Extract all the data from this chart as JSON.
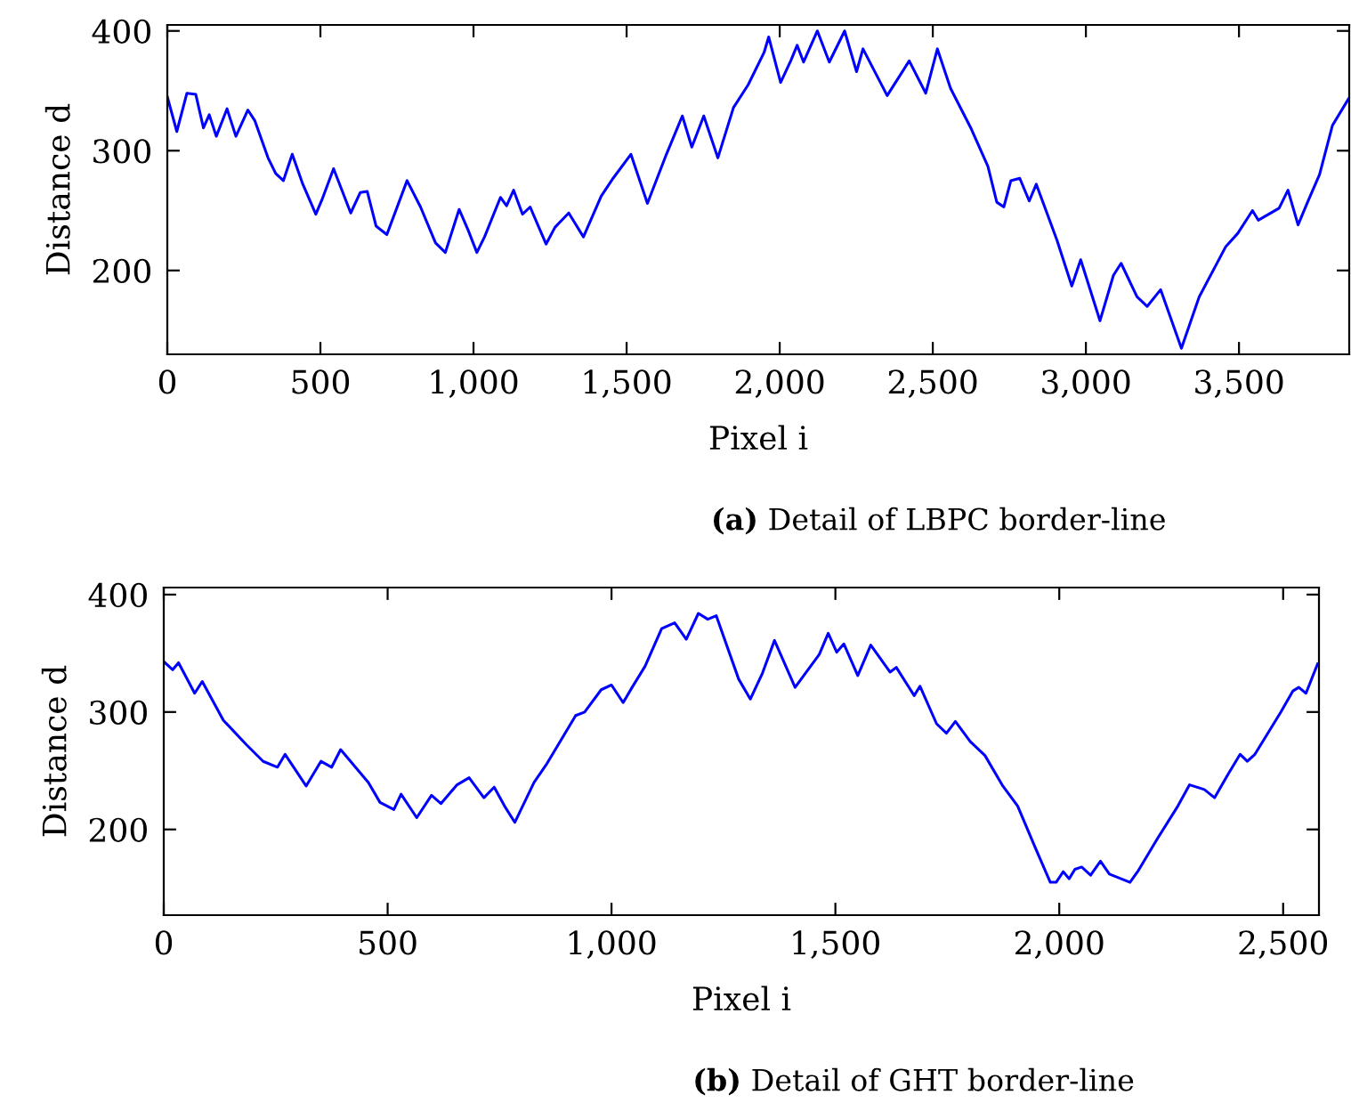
{
  "chart_data": [
    {
      "type": "line",
      "title": "(a) Detail of LBPC border-line",
      "xlabel": "Pixel i",
      "ylabel": "Distance d",
      "xlim": [
        0,
        3860
      ],
      "ylim": [
        130,
        405
      ],
      "xticks": [
        0,
        500,
        {
          "value": 1000,
          "label": "1,000"
        },
        {
          "value": 1500,
          "label": "1,500"
        },
        {
          "value": 2000,
          "label": "2,000"
        },
        {
          "value": 2500,
          "label": "2,500"
        },
        {
          "value": 3000,
          "label": "3,000"
        },
        {
          "value": 3500,
          "label": "3,500"
        }
      ],
      "yticks": [
        200,
        300,
        400
      ],
      "series": [
        {
          "color": "#0000ff",
          "x": [
            0,
            31,
            64,
            93,
            118,
            137,
            160,
            195,
            224,
            263,
            286,
            329,
            354,
            379,
            408,
            441,
            485,
            505,
            543,
            599,
            630,
            653,
            682,
            717,
            783,
            827,
            876,
            908,
            953,
            982,
            1011,
            1036,
            1088,
            1108,
            1131,
            1160,
            1185,
            1237,
            1266,
            1311,
            1359,
            1417,
            1456,
            1514,
            1568,
            1630,
            1682,
            1713,
            1752,
            1798,
            1849,
            1897,
            1949,
            1964,
            2003,
            2036,
            2057,
            2078,
            2123,
            2162,
            2212,
            2251,
            2272,
            2351,
            2423,
            2477,
            2515,
            2558,
            2626,
            2680,
            2709,
            2732,
            2755,
            2784,
            2815,
            2838,
            2906,
            2954,
            2983,
            3046,
            3090,
            3115,
            3167,
            3200,
            3244,
            3312,
            3370,
            3457,
            3496,
            3544,
            3563,
            3631,
            3660,
            3693,
            3724,
            3763,
            3805,
            3857
          ],
          "values": [
            345,
            316,
            348,
            347,
            319,
            330,
            312,
            335,
            312,
            334,
            325,
            294,
            281,
            275,
            297,
            273,
            247,
            259,
            285,
            248,
            265,
            266,
            237,
            230,
            275,
            253,
            223,
            215,
            251,
            234,
            215,
            228,
            261,
            254,
            267,
            247,
            253,
            222,
            236,
            248,
            228,
            262,
            277,
            297,
            256,
            297,
            329,
            303,
            329,
            294,
            336,
            355,
            382,
            395,
            357,
            375,
            388,
            374,
            400,
            374,
            400,
            366,
            385,
            346,
            375,
            348,
            385,
            352,
            318,
            287,
            257,
            253,
            275,
            277,
            258,
            272,
            225,
            187,
            209,
            158,
            196,
            206,
            178,
            170,
            184,
            135,
            178,
            220,
            231,
            250,
            242,
            252,
            267,
            238,
            257,
            280,
            321,
            343
          ]
        }
      ]
    },
    {
      "type": "line",
      "title": "(b) Detail of GHT border-line",
      "xlabel": "Pixel i",
      "ylabel": "Distance d",
      "xlim": [
        0,
        2580
      ],
      "ylim": [
        127,
        406
      ],
      "xticks": [
        0,
        500,
        {
          "value": 1000,
          "label": "1,000"
        },
        {
          "value": 1500,
          "label": "1,500"
        },
        {
          "value": 2000,
          "label": "2,000"
        },
        {
          "value": 2500,
          "label": "2,500"
        }
      ],
      "yticks": [
        200,
        300,
        400
      ],
      "series": [
        {
          "color": "#0000ff",
          "x": [
            0,
            20,
            33,
            69,
            86,
            133,
            185,
            222,
            254,
            271,
            318,
            351,
            375,
            395,
            457,
            483,
            514,
            530,
            565,
            598,
            619,
            655,
            682,
            715,
            738,
            761,
            784,
            827,
            854,
            920,
            940,
            977,
            1000,
            1026,
            1046,
            1075,
            1112,
            1141,
            1167,
            1194,
            1215,
            1234,
            1284,
            1310,
            1337,
            1364,
            1410,
            1464,
            1484,
            1503,
            1519,
            1550,
            1579,
            1622,
            1636,
            1676,
            1689,
            1726,
            1748,
            1768,
            1801,
            1834,
            1874,
            1907,
            1947,
            1980,
            1993,
            2009,
            2022,
            2035,
            2050,
            2070,
            2092,
            2112,
            2158,
            2175,
            2219,
            2265,
            2291,
            2324,
            2347,
            2377,
            2404,
            2420,
            2437,
            2495,
            2522,
            2535,
            2551,
            2577
          ],
          "values": [
            343,
            336,
            342,
            316,
            326,
            293,
            272,
            258,
            253,
            264,
            237,
            258,
            253,
            268,
            240,
            223,
            217,
            230,
            210,
            229,
            222,
            238,
            244,
            227,
            236,
            220,
            206,
            240,
            255,
            297,
            300,
            319,
            323,
            308,
            321,
            339,
            371,
            376,
            362,
            384,
            379,
            382,
            328,
            311,
            333,
            361,
            321,
            349,
            367,
            351,
            358,
            331,
            357,
            334,
            338,
            314,
            322,
            290,
            282,
            292,
            275,
            263,
            237,
            220,
            184,
            155,
            155,
            164,
            158,
            166,
            168,
            161,
            173,
            162,
            155,
            164,
            192,
            220,
            238,
            234,
            227,
            247,
            264,
            258,
            264,
            300,
            318,
            321,
            316,
            341
          ]
        }
      ]
    }
  ]
}
